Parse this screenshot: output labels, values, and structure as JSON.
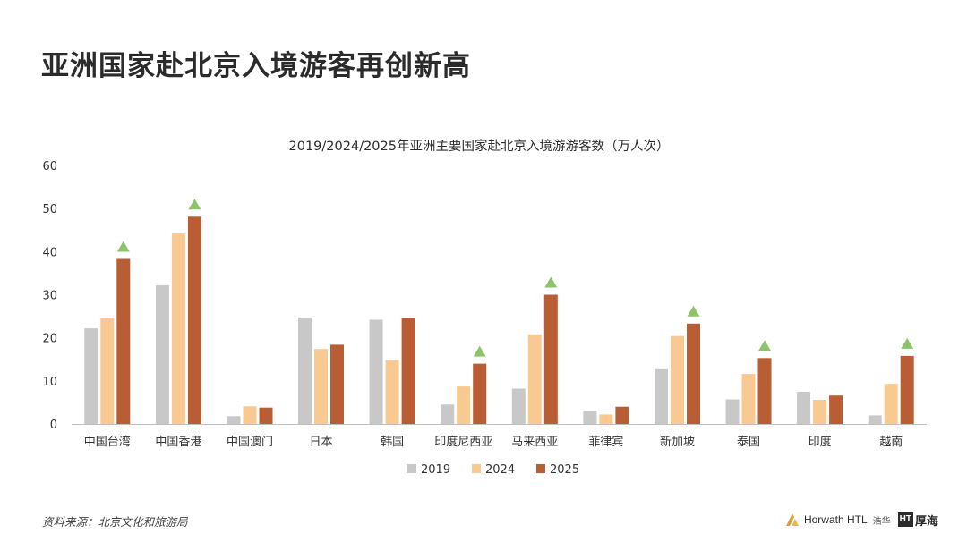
{
  "page": {
    "title": "亚洲国家赴北京入境游客再创新高",
    "source": "资料来源：北京文化和旅游局"
  },
  "logos": {
    "horwath_name": "Horwath HTL",
    "horwath_cn": "浩华",
    "houhai_badge": "HT",
    "houhai_name": "厚海"
  },
  "chart_data": {
    "type": "bar",
    "title": "2019/2024/2025年亚洲主要国家赴北京入境游游客数（万人次）",
    "xlabel": "",
    "ylabel": "",
    "ylim": [
      0,
      60
    ],
    "yticks": [
      0,
      10,
      20,
      30,
      40,
      50,
      60
    ],
    "grid": false,
    "legend_position": "bottom",
    "categories": [
      "中国台湾",
      "中国香港",
      "中国澳门",
      "日本",
      "韩国",
      "印度尼西亚",
      "马来西亚",
      "菲律宾",
      "新加坡",
      "泰国",
      "印度",
      "越南"
    ],
    "series": [
      {
        "name": "2019",
        "color": "#c8c8c8",
        "values": [
          22.2,
          32.2,
          1.8,
          24.7,
          24.2,
          4.5,
          8.2,
          3.1,
          12.7,
          5.7,
          7.5,
          2.0
        ]
      },
      {
        "name": "2024",
        "color": "#f8c990",
        "values": [
          24.7,
          44.2,
          4.1,
          17.4,
          14.8,
          8.7,
          20.8,
          2.2,
          20.4,
          11.6,
          5.6,
          9.3
        ]
      },
      {
        "name": "2025",
        "color": "#b95d34",
        "values": [
          38.3,
          48.1,
          3.8,
          18.4,
          24.6,
          14.0,
          30.0,
          4.0,
          23.3,
          15.3,
          6.6,
          15.8
        ]
      }
    ],
    "growth_markers": [
      "中国台湾",
      "中国香港",
      "印度尼西亚",
      "马来西亚",
      "新加坡",
      "泰国",
      "越南"
    ],
    "growth_marker_color": "#8dc46a"
  }
}
